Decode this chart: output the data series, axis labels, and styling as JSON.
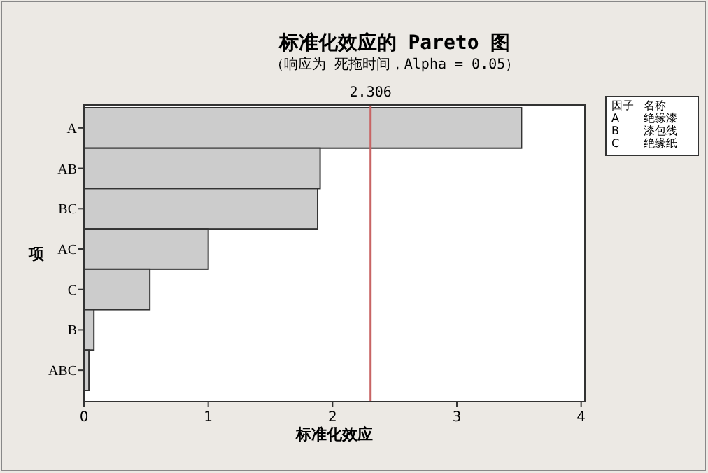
{
  "chart_data": {
    "type": "bar",
    "orientation": "horizontal",
    "title": "标准化效应的 Pareto 图",
    "subtitle": "（响应为 死拖时间，Alpha =  0.05）",
    "xlabel": "标准化效应",
    "ylabel": "项",
    "categories": [
      "A",
      "AB",
      "BC",
      "AC",
      "C",
      "B",
      "ABC"
    ],
    "values": [
      3.52,
      1.9,
      1.88,
      1.0,
      0.53,
      0.08,
      0.04
    ],
    "color": "#cccccc",
    "xlim": [
      0,
      4.03
    ],
    "xticks": [
      0,
      1,
      2,
      3,
      4
    ],
    "ref_lines": [
      {
        "axis": "x",
        "value": 2.306,
        "label": "2.306",
        "color": "#c86464"
      }
    ],
    "annotations": [
      "因子",
      "名称",
      "A",
      "绝缘漆",
      "B",
      "漆包线",
      "C",
      "绝缘纸"
    ]
  }
}
